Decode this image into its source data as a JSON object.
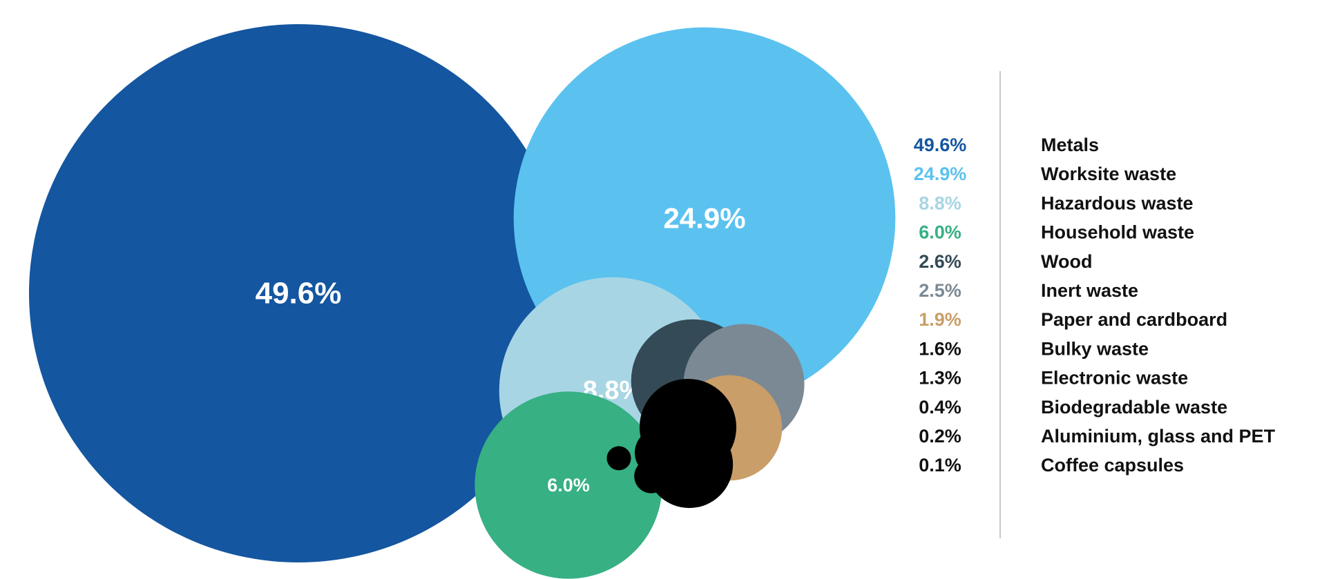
{
  "chart_data": {
    "type": "bubble",
    "title": "",
    "legend_placement": "right",
    "series": [
      {
        "name": "Metals",
        "value": 49.6,
        "label": "49.6%",
        "color": "#1456a0",
        "show_label": true
      },
      {
        "name": "Worksite waste",
        "value": 24.9,
        "label": "24.9%",
        "color": "#5bc2ef",
        "show_label": true
      },
      {
        "name": "Hazardous waste",
        "value": 8.8,
        "label": "8.8%",
        "color": "#a7d5e4",
        "show_label": true
      },
      {
        "name": "Household waste",
        "value": 6.0,
        "label": "6.0%",
        "color": "#37b083",
        "show_label": true
      },
      {
        "name": "Wood",
        "value": 2.6,
        "label": "2.6%",
        "color": "#344a56",
        "show_label": false
      },
      {
        "name": "Inert waste",
        "value": 2.5,
        "label": "2.5%",
        "color": "#7b8994",
        "show_label": false
      },
      {
        "name": "Paper and cardboard",
        "value": 1.9,
        "label": "1.9%",
        "color": "#c99e68",
        "show_label": false
      },
      {
        "name": "Bulky waste",
        "value": 1.6,
        "label": "1.6%",
        "color": "#000000",
        "show_label": false
      },
      {
        "name": "Electronic waste",
        "value": 1.3,
        "label": "1.3%",
        "color": "#000000",
        "show_label": false
      },
      {
        "name": "Biodegradable waste",
        "value": 0.4,
        "label": "0.4%",
        "color": "#000000",
        "show_label": false
      },
      {
        "name": "Aluminium, glass and PET",
        "value": 0.2,
        "label": "0.2%",
        "color": "#000000",
        "show_label": false
      },
      {
        "name": "Coffee capsules",
        "value": 0.1,
        "label": "0.1%",
        "color": "#000000",
        "show_label": false
      }
    ]
  }
}
